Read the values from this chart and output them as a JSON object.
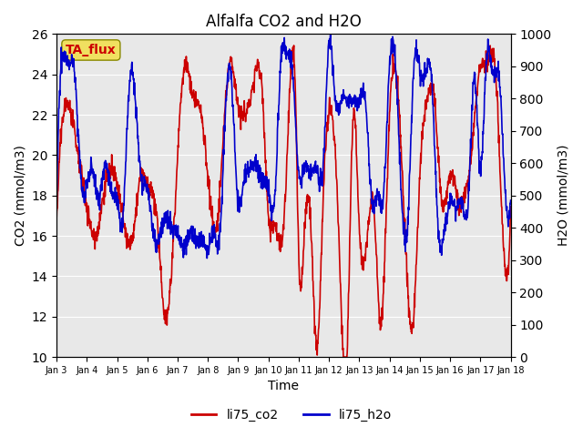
{
  "title": "Alfalfa CO2 and H2O",
  "xlabel": "Time",
  "ylabel_left": "CO2 (mmol/m3)",
  "ylabel_right": "H2O (mmol/m3)",
  "ylim_left": [
    10,
    26
  ],
  "ylim_right": [
    0,
    1000
  ],
  "yticks_left": [
    10,
    12,
    14,
    16,
    18,
    20,
    22,
    24,
    26
  ],
  "yticks_right": [
    0,
    100,
    200,
    300,
    400,
    500,
    600,
    700,
    800,
    900,
    1000
  ],
  "xtick_labels": [
    "Jan 3",
    "Jan 4",
    "Jan 5",
    "Jan 6",
    "Jan 7",
    "Jan 8",
    "Jan 9",
    "Jan 10",
    "Jan 11",
    "Jan 12",
    "Jan 13",
    "Jan 14",
    "Jan 15",
    "Jan 16",
    "Jan 17",
    "Jan 18"
  ],
  "legend_labels": [
    "li75_co2",
    "li75_h2o"
  ],
  "line_colors": [
    "#cc0000",
    "#0000cc"
  ],
  "annotation_text": "TA_flux",
  "annotation_box_color": "#f0e060",
  "annotation_text_color": "#cc0000",
  "bg_color": "#e8e8e8",
  "fig_bg_color": "#ffffff",
  "linewidth": 1.2,
  "n_points": 1440
}
